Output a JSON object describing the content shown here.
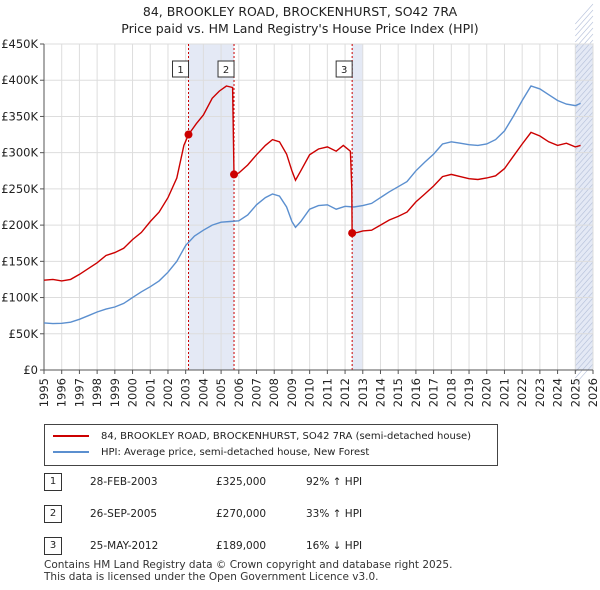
{
  "title": {
    "line1": "84, BROOKLEY ROAD, BROCKENHURST, SO42 7RA",
    "line2": "Price paid vs. HM Land Registry's House Price Index (HPI)"
  },
  "chart_data": {
    "type": "line",
    "title": "84, BROOKLEY ROAD, BROCKENHURST, SO42 7RA — Price paid vs. HM Land Registry's House Price Index (HPI)",
    "xlabel": "",
    "ylabel": "",
    "xlim": [
      1995,
      2026
    ],
    "ylim": [
      0,
      450000
    ],
    "grid": true,
    "x_ticks": [
      "1995",
      "1996",
      "1997",
      "1998",
      "1999",
      "2000",
      "2001",
      "2002",
      "2003",
      "2004",
      "2005",
      "2006",
      "2007",
      "2008",
      "2009",
      "2010",
      "2011",
      "2012",
      "2013",
      "2014",
      "2015",
      "2016",
      "2017",
      "2018",
      "2019",
      "2020",
      "2021",
      "2022",
      "2023",
      "2024",
      "2025",
      "2026"
    ],
    "y_ticks": [
      {
        "value": 0,
        "label": "£0"
      },
      {
        "value": 50000,
        "label": "£50K"
      },
      {
        "value": 100000,
        "label": "£100K"
      },
      {
        "value": 150000,
        "label": "£150K"
      },
      {
        "value": 200000,
        "label": "£200K"
      },
      {
        "value": 250000,
        "label": "£250K"
      },
      {
        "value": 300000,
        "label": "£300K"
      },
      {
        "value": 350000,
        "label": "£350K"
      },
      {
        "value": 400000,
        "label": "£400K"
      },
      {
        "value": 450000,
        "label": "£450K"
      }
    ],
    "shaded_ranges": [
      [
        2003.16,
        2005.73
      ],
      [
        2012.4,
        2013.0
      ],
      [
        2025.0,
        2026.0
      ]
    ],
    "series": [
      {
        "name": "84, BROOKLEY ROAD, BROCKENHURST, SO42 7RA (semi-detached house)",
        "color": "#cc0000",
        "points": [
          [
            1995.0,
            124000
          ],
          [
            1995.5,
            125000
          ],
          [
            1996.0,
            123000
          ],
          [
            1996.5,
            125000
          ],
          [
            1997.0,
            132000
          ],
          [
            1997.5,
            140000
          ],
          [
            1998.0,
            148000
          ],
          [
            1998.5,
            158000
          ],
          [
            1999.0,
            162000
          ],
          [
            1999.5,
            168000
          ],
          [
            2000.0,
            180000
          ],
          [
            2000.5,
            190000
          ],
          [
            2001.0,
            205000
          ],
          [
            2001.5,
            218000
          ],
          [
            2002.0,
            238000
          ],
          [
            2002.5,
            265000
          ],
          [
            2002.9,
            310000
          ],
          [
            2003.16,
            325000
          ],
          [
            2003.6,
            340000
          ],
          [
            2004.0,
            352000
          ],
          [
            2004.5,
            375000
          ],
          [
            2004.9,
            385000
          ],
          [
            2005.3,
            392000
          ],
          [
            2005.65,
            390000
          ],
          [
            2005.73,
            270000
          ],
          [
            2006.0,
            272000
          ],
          [
            2006.5,
            283000
          ],
          [
            2007.0,
            297000
          ],
          [
            2007.5,
            310000
          ],
          [
            2007.9,
            318000
          ],
          [
            2008.3,
            315000
          ],
          [
            2008.7,
            298000
          ],
          [
            2009.0,
            275000
          ],
          [
            2009.2,
            262000
          ],
          [
            2009.5,
            275000
          ],
          [
            2010.0,
            297000
          ],
          [
            2010.5,
            305000
          ],
          [
            2011.0,
            308000
          ],
          [
            2011.5,
            302000
          ],
          [
            2011.9,
            310000
          ],
          [
            2012.3,
            302000
          ],
          [
            2012.38,
            250000
          ],
          [
            2012.4,
            189000
          ],
          [
            2012.7,
            190000
          ],
          [
            2013.0,
            192000
          ],
          [
            2013.5,
            193000
          ],
          [
            2014.0,
            200000
          ],
          [
            2014.5,
            207000
          ],
          [
            2015.0,
            212000
          ],
          [
            2015.5,
            218000
          ],
          [
            2016.0,
            232000
          ],
          [
            2016.5,
            243000
          ],
          [
            2017.0,
            254000
          ],
          [
            2017.5,
            267000
          ],
          [
            2018.0,
            270000
          ],
          [
            2018.5,
            267000
          ],
          [
            2019.0,
            264000
          ],
          [
            2019.5,
            263000
          ],
          [
            2020.0,
            265000
          ],
          [
            2020.5,
            268000
          ],
          [
            2021.0,
            278000
          ],
          [
            2021.5,
            295000
          ],
          [
            2022.0,
            312000
          ],
          [
            2022.5,
            328000
          ],
          [
            2023.0,
            323000
          ],
          [
            2023.5,
            315000
          ],
          [
            2024.0,
            310000
          ],
          [
            2024.5,
            313000
          ],
          [
            2025.0,
            308000
          ],
          [
            2025.3,
            310000
          ]
        ]
      },
      {
        "name": "HPI: Average price, semi-detached house, New Forest",
        "color": "#5b8fcf",
        "points": [
          [
            1995.0,
            65000
          ],
          [
            1995.5,
            64000
          ],
          [
            1996.0,
            64500
          ],
          [
            1996.5,
            66000
          ],
          [
            1997.0,
            70000
          ],
          [
            1997.5,
            75000
          ],
          [
            1998.0,
            80000
          ],
          [
            1998.5,
            84000
          ],
          [
            1999.0,
            87000
          ],
          [
            1999.5,
            92000
          ],
          [
            2000.0,
            100000
          ],
          [
            2000.5,
            108000
          ],
          [
            2001.0,
            115000
          ],
          [
            2001.5,
            123000
          ],
          [
            2002.0,
            135000
          ],
          [
            2002.5,
            150000
          ],
          [
            2003.0,
            172000
          ],
          [
            2003.5,
            185000
          ],
          [
            2004.0,
            193000
          ],
          [
            2004.5,
            200000
          ],
          [
            2005.0,
            204000
          ],
          [
            2005.5,
            205000
          ],
          [
            2006.0,
            206000
          ],
          [
            2006.5,
            214000
          ],
          [
            2007.0,
            228000
          ],
          [
            2007.5,
            238000
          ],
          [
            2007.9,
            243000
          ],
          [
            2008.3,
            240000
          ],
          [
            2008.7,
            225000
          ],
          [
            2009.0,
            205000
          ],
          [
            2009.2,
            197000
          ],
          [
            2009.5,
            205000
          ],
          [
            2010.0,
            222000
          ],
          [
            2010.5,
            227000
          ],
          [
            2011.0,
            228000
          ],
          [
            2011.5,
            222000
          ],
          [
            2012.0,
            226000
          ],
          [
            2012.5,
            225000
          ],
          [
            2013.0,
            227000
          ],
          [
            2013.5,
            230000
          ],
          [
            2014.0,
            238000
          ],
          [
            2014.5,
            246000
          ],
          [
            2015.0,
            253000
          ],
          [
            2015.5,
            260000
          ],
          [
            2016.0,
            275000
          ],
          [
            2016.5,
            287000
          ],
          [
            2017.0,
            298000
          ],
          [
            2017.5,
            312000
          ],
          [
            2018.0,
            315000
          ],
          [
            2018.5,
            313000
          ],
          [
            2019.0,
            311000
          ],
          [
            2019.5,
            310000
          ],
          [
            2020.0,
            312000
          ],
          [
            2020.5,
            318000
          ],
          [
            2021.0,
            330000
          ],
          [
            2021.5,
            350000
          ],
          [
            2022.0,
            372000
          ],
          [
            2022.5,
            392000
          ],
          [
            2023.0,
            388000
          ],
          [
            2023.5,
            380000
          ],
          [
            2024.0,
            372000
          ],
          [
            2024.5,
            367000
          ],
          [
            2025.0,
            365000
          ],
          [
            2025.3,
            368000
          ]
        ]
      }
    ],
    "annotations": [
      {
        "label": "1",
        "x": 2003.16,
        "y": 325000
      },
      {
        "label": "2",
        "x": 2005.73,
        "y": 270000
      },
      {
        "label": "3",
        "x": 2012.4,
        "y": 189000
      }
    ]
  },
  "legend": {
    "items": [
      {
        "label": "84, BROOKLEY ROAD, BROCKENHURST, SO42 7RA (semi-detached house)",
        "color": "#cc0000"
      },
      {
        "label": "HPI: Average price, semi-detached house, New Forest",
        "color": "#5b8fcf"
      }
    ]
  },
  "transactions": [
    {
      "num": "1",
      "date": "28-FEB-2003",
      "price": "£325,000",
      "hpi": "92% ↑ HPI"
    },
    {
      "num": "2",
      "date": "26-SEP-2005",
      "price": "£270,000",
      "hpi": "33% ↑ HPI"
    },
    {
      "num": "3",
      "date": "25-MAY-2012",
      "price": "£189,000",
      "hpi": "16% ↓ HPI"
    }
  ],
  "footer": {
    "line1": "Contains HM Land Registry data © Crown copyright and database right 2025.",
    "line2": "This data is licensed under the Open Government Licence v3.0."
  }
}
